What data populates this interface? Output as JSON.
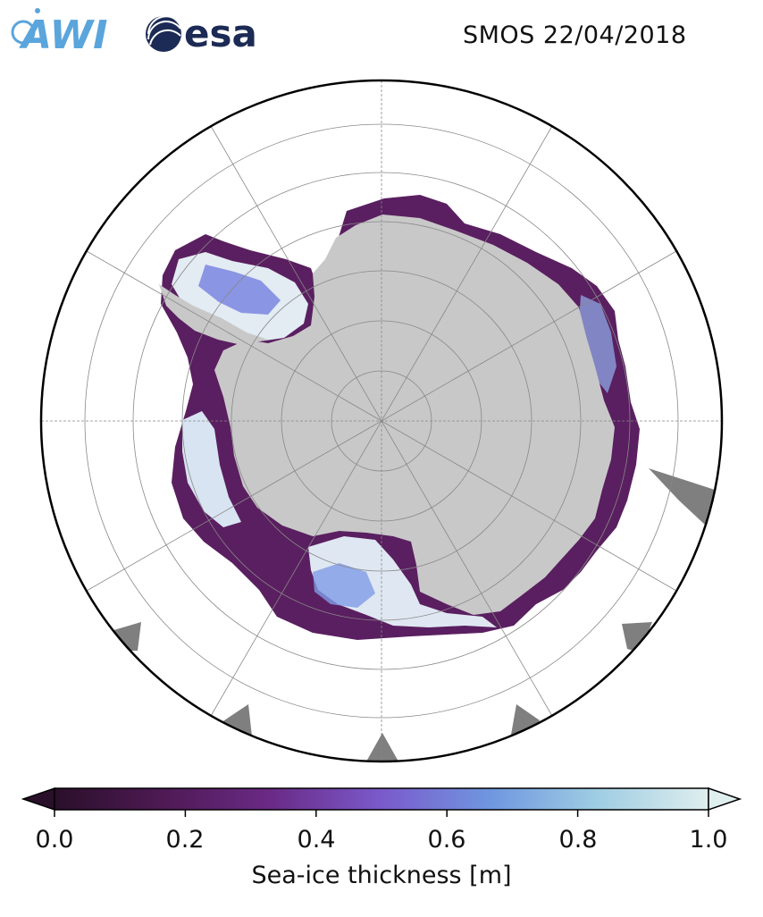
{
  "header": {
    "title": "SMOS 22/04/2018",
    "logo_awi_text": "AWI",
    "logo_esa_text": "esa"
  },
  "map": {
    "projection": "south-polar-stereographic",
    "colors": {
      "land": "#c8c8c8",
      "coast_other": "#7f7f7f",
      "ocean": "#ffffff",
      "grid": "#888888",
      "frame": "#000000"
    }
  },
  "colorbar": {
    "label": "Sea-ice thickness [m]",
    "min": 0.0,
    "max": 1.0,
    "ticks": [
      "0.0",
      "0.2",
      "0.4",
      "0.6",
      "0.8",
      "1.0"
    ],
    "tick_values": [
      0.0,
      0.2,
      0.4,
      0.6,
      0.8,
      1.0
    ],
    "extend": "both",
    "colormap_stops": [
      "#2a0f2a",
      "#4f1a55",
      "#6a2a86",
      "#7a5acb",
      "#6f98e0",
      "#9fcde3",
      "#dfeeee"
    ]
  }
}
